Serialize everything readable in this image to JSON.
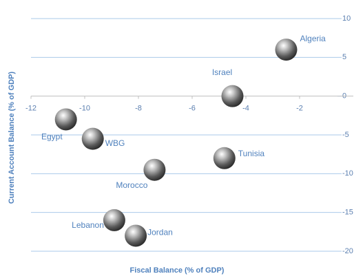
{
  "chart_data": {
    "type": "scatter",
    "x_label": "Fiscal Balance (% of GDP)",
    "y_label": "Current Account Balance (% of GDP)",
    "points": [
      "Algeria",
      "Israel",
      "Egypt",
      "WBG",
      "Tunisia",
      "Morocco",
      "Lebanon",
      "Jordan"
    ],
    "x": [
      -2.5,
      -4.5,
      -10.7,
      -9.7,
      -4.8,
      -7.4,
      -8.9,
      -8.1
    ],
    "y": [
      6,
      0,
      -3,
      -5.5,
      -8,
      -9.5,
      -16,
      -18
    ],
    "xlim": [
      -12,
      0
    ],
    "ylim": [
      -20,
      10
    ],
    "xticks": [
      -12,
      -10,
      -8,
      -6,
      -4,
      -2
    ],
    "yticks": [
      10,
      5,
      0,
      -5,
      -10,
      -15,
      -20
    ],
    "grid": true
  }
}
